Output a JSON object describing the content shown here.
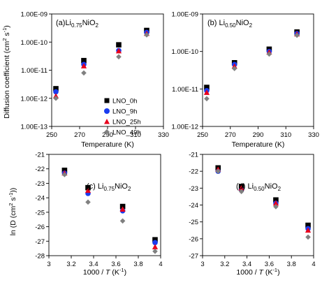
{
  "colors": {
    "LNO_0h": "#000000",
    "LNO_9h": "#1a3cf0",
    "LNO_25h": "#e8001c",
    "LNO_49h": "#808080"
  },
  "markers": {
    "LNO_0h": "square",
    "LNO_9h": "circle",
    "LNO_25h": "triangle",
    "LNO_49h": "diamond"
  },
  "legend": {
    "placement": "panel-a-lower-right",
    "entries": [
      {
        "key": "LNO_0h",
        "label": "LNO_0h"
      },
      {
        "key": "LNO_9h",
        "label": "LNO_9h"
      },
      {
        "key": "LNO_25h",
        "label": "LNO_25h"
      },
      {
        "key": "LNO_49h",
        "label": "LNO_49h"
      }
    ]
  },
  "shared_labels": {
    "ylabel_top_prefix": "Diffusion coefficient (cm",
    "ylabel_top_sup1": "2",
    "ylabel_top_mid": " s",
    "ylabel_top_sup2": "-1",
    "ylabel_top_suffix": ")",
    "ylabel_bottom_prefix": "ln (D (cm",
    "ylabel_bottom_sup1": "2",
    "ylabel_bottom_mid": " s",
    "ylabel_bottom_sup2": "-1",
    "ylabel_bottom_suffix": "))"
  },
  "chart_data": [
    {
      "id": "a",
      "type": "scatter",
      "title_prefix": "(a)Li",
      "title_sub": "0.75",
      "title_suffix": "NiO",
      "title_sub2": "2",
      "xlabel": "Temperature (K)",
      "yscale": "log",
      "xlim": [
        250,
        330
      ],
      "ylim": [
        1e-13,
        1e-09
      ],
      "xticks": [
        250,
        270,
        290,
        310,
        330
      ],
      "yticks": [
        1e-13,
        1e-12,
        1e-11,
        1e-10,
        1e-09
      ],
      "yticklabels": [
        "1.00E-13",
        "1.00E-12",
        "1.00E-11",
        "1.00E-10",
        "1.00E-09"
      ],
      "series": [
        {
          "key": "LNO_0h",
          "x": [
            253,
            273,
            298,
            318
          ],
          "y": [
            2.2e-12,
            2.2e-11,
            8e-11,
            2.6e-10
          ]
        },
        {
          "key": "LNO_9h",
          "x": [
            253,
            273,
            298,
            318
          ],
          "y": [
            1.7e-12,
            1.6e-11,
            5e-11,
            2.2e-10
          ]
        },
        {
          "key": "LNO_25h",
          "x": [
            253,
            273,
            298,
            318
          ],
          "y": [
            1.2e-12,
            1.4e-11,
            4.8e-11,
            2e-10
          ]
        },
        {
          "key": "LNO_49h",
          "x": [
            253,
            273,
            298,
            318
          ],
          "y": [
            1e-12,
            8e-12,
            3e-11,
            1.8e-10
          ]
        }
      ]
    },
    {
      "id": "b",
      "type": "scatter",
      "title_prefix": "(b) Li",
      "title_sub": "0.50",
      "title_suffix": "NiO",
      "title_sub2": "2",
      "xlabel": "Temperature (K)",
      "yscale": "log",
      "xlim": [
        250,
        330
      ],
      "ylim": [
        1e-12,
        1e-09
      ],
      "xticks": [
        250,
        270,
        290,
        310,
        330
      ],
      "yticks": [
        1e-12,
        1e-11,
        1e-10,
        1e-09
      ],
      "yticklabels": [
        "1.00E-12",
        "1.00E-11",
        "1.00E-10",
        "1.00E-09"
      ],
      "series": [
        {
          "key": "LNO_0h",
          "x": [
            253,
            273,
            298,
            318
          ],
          "y": [
            1.1e-11,
            5e-11,
            1.15e-10,
            3.3e-10
          ]
        },
        {
          "key": "LNO_9h",
          "x": [
            253,
            273,
            298,
            318
          ],
          "y": [
            9e-12,
            4.5e-11,
            1e-10,
            3e-10
          ]
        },
        {
          "key": "LNO_25h",
          "x": [
            253,
            273,
            298,
            318
          ],
          "y": [
            8e-12,
            4e-11,
            9.5e-11,
            2.9e-10
          ]
        },
        {
          "key": "LNO_49h",
          "x": [
            253,
            273,
            298,
            318
          ],
          "y": [
            5.5e-12,
            3.5e-11,
            8.5e-11,
            2.7e-10
          ]
        }
      ]
    },
    {
      "id": "c",
      "type": "scatter",
      "title_prefix": "(c) Li",
      "title_sub": "0.75",
      "title_suffix": "NiO",
      "title_sub2": "2",
      "xlabel_prefix": "1000 / ",
      "xlabel_italic": "T",
      "xlabel_suffix": " (K",
      "xlabel_sup": "-1",
      "xlabel_end": ")",
      "yscale": "linear",
      "xlim": [
        3,
        4
      ],
      "ylim": [
        -28,
        -21
      ],
      "xticks": [
        3,
        3.2,
        3.4,
        3.6,
        3.8,
        4
      ],
      "xticklabels": [
        "3",
        "3.2",
        "3.4",
        "3.6",
        "3.8",
        "4"
      ],
      "yticks": [
        -28,
        -27,
        -26,
        -25,
        -24,
        -23,
        -22,
        -21
      ],
      "yticklabels": [
        "-28",
        "-27",
        "-26",
        "-25",
        "-24",
        "-23",
        "-22",
        "-21"
      ],
      "series": [
        {
          "key": "LNO_0h",
          "x": [
            3.14,
            3.35,
            3.66,
            3.95
          ],
          "y": [
            -22.1,
            -23.3,
            -24.6,
            -26.9
          ]
        },
        {
          "key": "LNO_9h",
          "x": [
            3.14,
            3.35,
            3.66,
            3.95
          ],
          "y": [
            -22.3,
            -23.7,
            -24.9,
            -27.1
          ]
        },
        {
          "key": "LNO_25h",
          "x": [
            3.14,
            3.35,
            3.66,
            3.95
          ],
          "y": [
            -22.3,
            -23.5,
            -24.8,
            -27.4
          ]
        },
        {
          "key": "LNO_49h",
          "x": [
            3.14,
            3.35,
            3.66,
            3.95
          ],
          "y": [
            -22.4,
            -24.3,
            -25.6,
            -27.7
          ]
        }
      ]
    },
    {
      "id": "d",
      "type": "scatter",
      "title_prefix": "(d) Li",
      "title_sub": "0.50",
      "title_suffix": "NiO",
      "title_sub2": "2",
      "xlabel_prefix": "1000 / ",
      "xlabel_italic": "T",
      "xlabel_suffix": " (K",
      "xlabel_sup": "-1",
      "xlabel_end": ")",
      "yscale": "linear",
      "xlim": [
        3,
        4
      ],
      "ylim": [
        -27,
        -21
      ],
      "xticks": [
        3,
        3.2,
        3.4,
        3.6,
        3.8,
        4
      ],
      "xticklabels": [
        "3",
        "3.2",
        "3.4",
        "3.6",
        "3.8",
        "4"
      ],
      "yticks": [
        -27,
        -26,
        -25,
        -24,
        -23,
        -22,
        -21
      ],
      "yticklabels": [
        "-27",
        "-26",
        "-25",
        "-24",
        "-23",
        "-22",
        "-21"
      ],
      "series": [
        {
          "key": "LNO_0h",
          "x": [
            3.14,
            3.35,
            3.66,
            3.95
          ],
          "y": [
            -21.8,
            -22.9,
            -23.7,
            -25.2
          ]
        },
        {
          "key": "LNO_9h",
          "x": [
            3.14,
            3.35,
            3.66,
            3.95
          ],
          "y": [
            -22.0,
            -23.1,
            -23.9,
            -25.4
          ]
        },
        {
          "key": "LNO_25h",
          "x": [
            3.14,
            3.35,
            3.66,
            3.95
          ],
          "y": [
            -21.9,
            -23.0,
            -23.9,
            -25.5
          ]
        },
        {
          "key": "LNO_49h",
          "x": [
            3.14,
            3.35,
            3.66,
            3.95
          ],
          "y": [
            -22.0,
            -23.2,
            -24.1,
            -25.9
          ]
        }
      ]
    }
  ]
}
